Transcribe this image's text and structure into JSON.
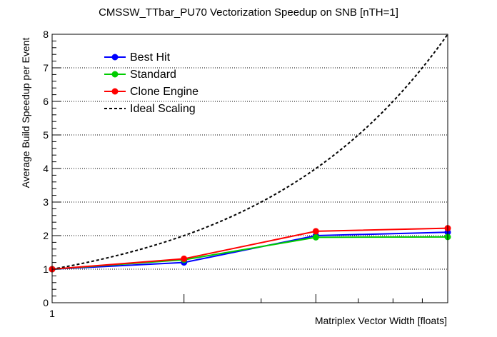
{
  "chart_data": {
    "type": "line",
    "title": "CMSSW_TTbar_PU70 Vectorization Speedup on SNB [nTH=1]",
    "xlabel": "Matriplex Vector Width [floats]",
    "ylabel": "Average Build Speedup per Event",
    "x_scale": "log2",
    "xlim": [
      1,
      8
    ],
    "ylim": [
      0,
      8
    ],
    "x_tick_labels": [
      "1"
    ],
    "y_ticks": [
      0,
      1,
      2,
      3,
      4,
      5,
      6,
      7,
      8
    ],
    "grid": {
      "y": true,
      "x": false
    },
    "legend_position": "top-left",
    "series": [
      {
        "name": "Best Hit",
        "color": "#0000ff",
        "style": "line-marker",
        "x": [
          1,
          2,
          4,
          8
        ],
        "y": [
          1.0,
          1.2,
          2.0,
          2.1
        ]
      },
      {
        "name": "Standard",
        "color": "#00cc00",
        "style": "line-marker",
        "x": [
          1,
          2,
          4,
          8
        ],
        "y": [
          1.0,
          1.28,
          1.95,
          1.96
        ]
      },
      {
        "name": "Clone Engine",
        "color": "#ff0000",
        "style": "line-marker",
        "x": [
          1,
          2,
          4,
          8
        ],
        "y": [
          1.0,
          1.31,
          2.13,
          2.22
        ]
      },
      {
        "name": "Ideal Scaling",
        "color": "#000000",
        "style": "dashed",
        "x": [
          1,
          2,
          4,
          8
        ],
        "y": [
          1,
          2,
          4,
          8
        ]
      }
    ]
  }
}
